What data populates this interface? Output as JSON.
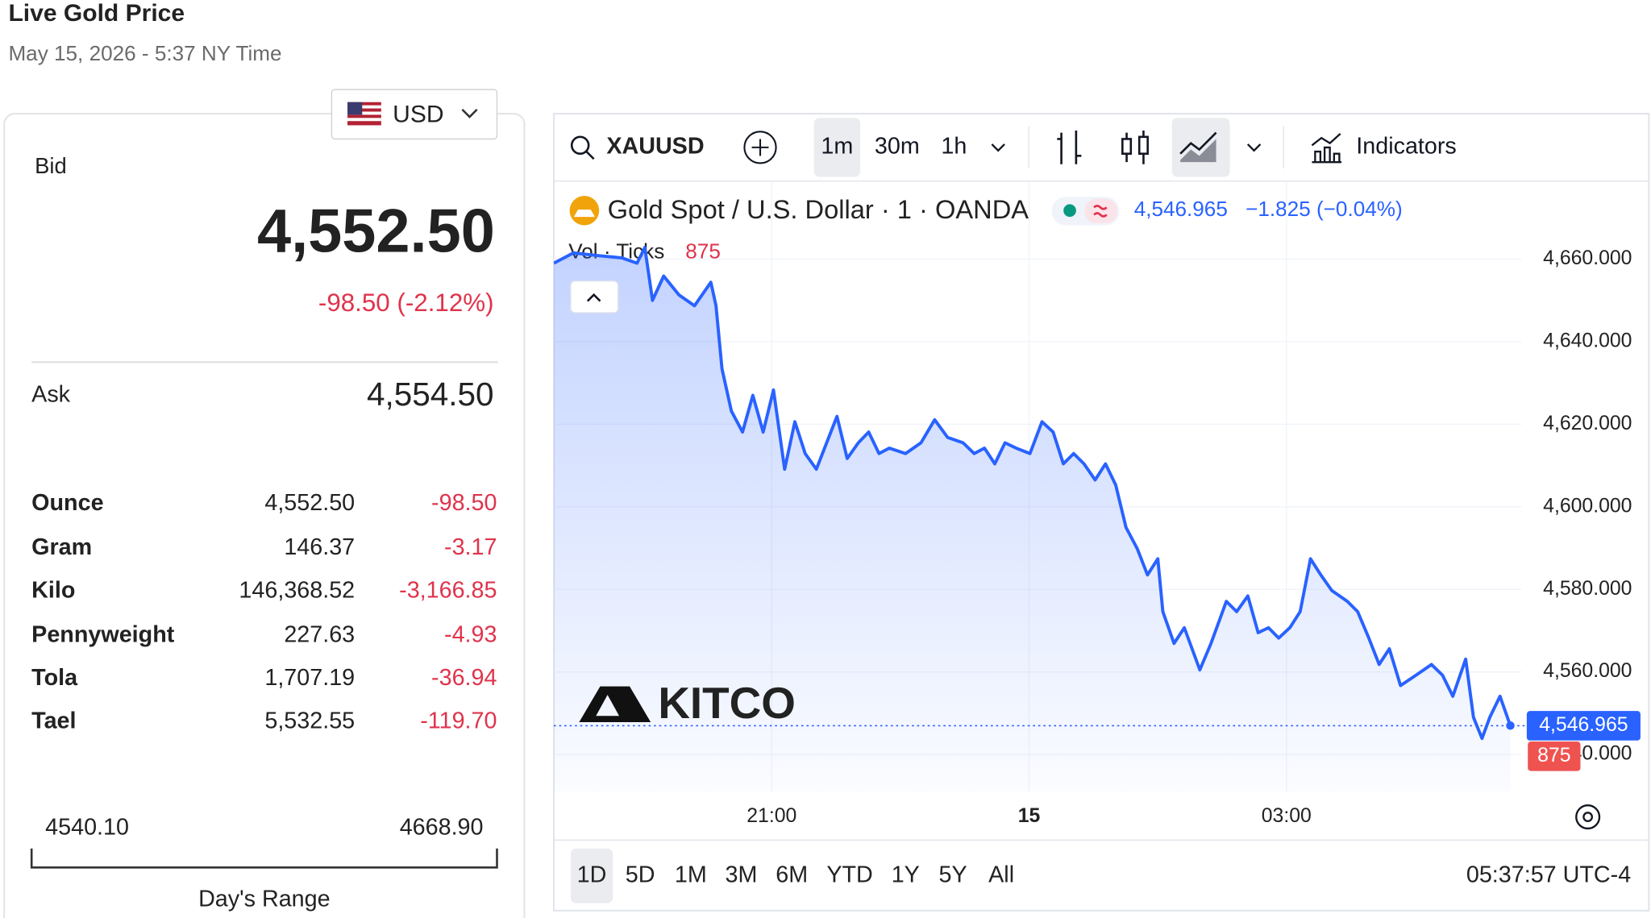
{
  "header": {
    "title": "Live Gold Price",
    "date": "May 15, 2026 - 5:37 NY Time"
  },
  "currency": "USD",
  "quote": {
    "bid_label": "Bid",
    "bid": "4,552.50",
    "change": "-98.50 (-2.12%)",
    "ask_label": "Ask",
    "ask": "4,554.50"
  },
  "table": {
    "rows": [
      [
        "Ounce",
        "4,552.50",
        "-98.50"
      ],
      [
        "Gram",
        "146.37",
        "-3.17"
      ],
      [
        "Kilo",
        "146,368.52",
        "-3,166.85"
      ],
      [
        "Pennyweight",
        "227.63",
        "-4.93"
      ],
      [
        "Tola",
        "1,707.19",
        "-36.94"
      ],
      [
        "Tael",
        "5,532.55",
        "-119.70"
      ]
    ]
  },
  "range": {
    "low": "4540.10",
    "high": "4668.90",
    "label": "Day's Range"
  },
  "toolbar": {
    "symbol": "XAUUSD",
    "intervals": [
      "1m",
      "30m",
      "1h"
    ],
    "indicators": "Indicators",
    "periods": [
      "1D",
      "5D",
      "1M",
      "3M",
      "6M",
      "YTD",
      "1Y",
      "5Y",
      "All"
    ],
    "clock": "05:37:57 UTC-4",
    "logo": "KITCO"
  },
  "chart_data": {
    "type": "line",
    "title": "Gold Spot / U.S. Dollar · 1 · OANDA",
    "last": {
      "value": 4546.965,
      "label": "4,546.965"
    },
    "last_change": "−1.825 (−0.04%)",
    "volume_label": "Vol · Ticks",
    "volume": 875,
    "color": "#2962ff",
    "x": [
      18.46,
      18.69,
      19.0,
      19.25,
      19.43,
      19.52,
      19.61,
      19.74,
      19.92,
      20.1,
      20.29,
      20.35,
      20.42,
      20.53,
      20.66,
      20.78,
      20.9,
      21.02,
      21.15,
      21.27,
      21.39,
      21.52,
      21.64,
      21.76,
      21.88,
      22.01,
      22.13,
      22.25,
      22.37,
      22.56,
      22.74,
      22.9,
      23.05,
      23.23,
      23.36,
      23.48,
      23.6,
      23.72,
      23.85,
      24.01,
      24.15,
      24.28,
      24.4,
      24.52,
      24.64,
      24.77,
      24.89,
      25.01,
      25.13,
      25.26,
      25.38,
      25.5,
      25.56,
      25.69,
      25.81,
      25.99,
      26.12,
      26.3,
      26.42,
      26.55,
      26.67,
      26.79,
      26.91,
      27.04,
      27.16,
      27.28,
      27.4,
      27.53,
      27.71,
      27.83,
      27.96,
      28.08,
      28.2,
      28.33,
      28.51,
      28.69,
      28.82,
      28.94,
      29.09,
      29.18,
      29.28,
      29.37,
      29.49,
      29.61
    ],
    "values": [
      4659.0,
      4661.5,
      4660.8,
      4660.3,
      4659.0,
      4662.8,
      4650.0,
      4655.9,
      4651.3,
      4648.7,
      4654.4,
      4648.7,
      4633.4,
      4623.2,
      4618.1,
      4627.0,
      4618.1,
      4628.3,
      4609.1,
      4620.6,
      4612.9,
      4609.1,
      4615.5,
      4621.9,
      4611.7,
      4615.5,
      4618.1,
      4612.9,
      4614.2,
      4612.9,
      4615.5,
      4621.1,
      4616.8,
      4615.5,
      4612.9,
      4614.2,
      4610.4,
      4615.5,
      4614.2,
      4612.9,
      4620.6,
      4618.1,
      4610.4,
      4612.9,
      4610.4,
      4606.5,
      4610.4,
      4605.3,
      4595.0,
      4589.9,
      4583.5,
      4587.4,
      4574.6,
      4566.9,
      4570.7,
      4560.5,
      4566.9,
      4577.1,
      4574.6,
      4578.4,
      4569.5,
      4570.7,
      4568.2,
      4570.7,
      4574.6,
      4587.4,
      4583.5,
      4579.7,
      4577.1,
      4574.6,
      4568.2,
      4561.8,
      4565.6,
      4556.7,
      4559.2,
      4561.8,
      4559.2,
      4554.1,
      4563.1,
      4549.0,
      4543.9,
      4549.0,
      4554.1,
      4547.0
    ],
    "xlim": [
      18.46,
      29.74
    ],
    "ylim": [
      4531,
      4663.6
    ],
    "xticks": [
      {
        "value": 21,
        "label": "21:00"
      },
      {
        "value": 24,
        "label": "15"
      },
      {
        "value": 27,
        "label": "03:00"
      }
    ],
    "yticks": [
      {
        "value": 4540,
        "label": "4,540.000"
      },
      {
        "value": 4560,
        "label": "4,560.000"
      },
      {
        "value": 4580,
        "label": "4,580.000"
      },
      {
        "value": 4600,
        "label": "4,600.000"
      },
      {
        "value": 4620,
        "label": "4,620.000"
      },
      {
        "value": 4640,
        "label": "4,640.000"
      },
      {
        "value": 4660,
        "label": "4,660.000"
      }
    ],
    "grid": true
  }
}
